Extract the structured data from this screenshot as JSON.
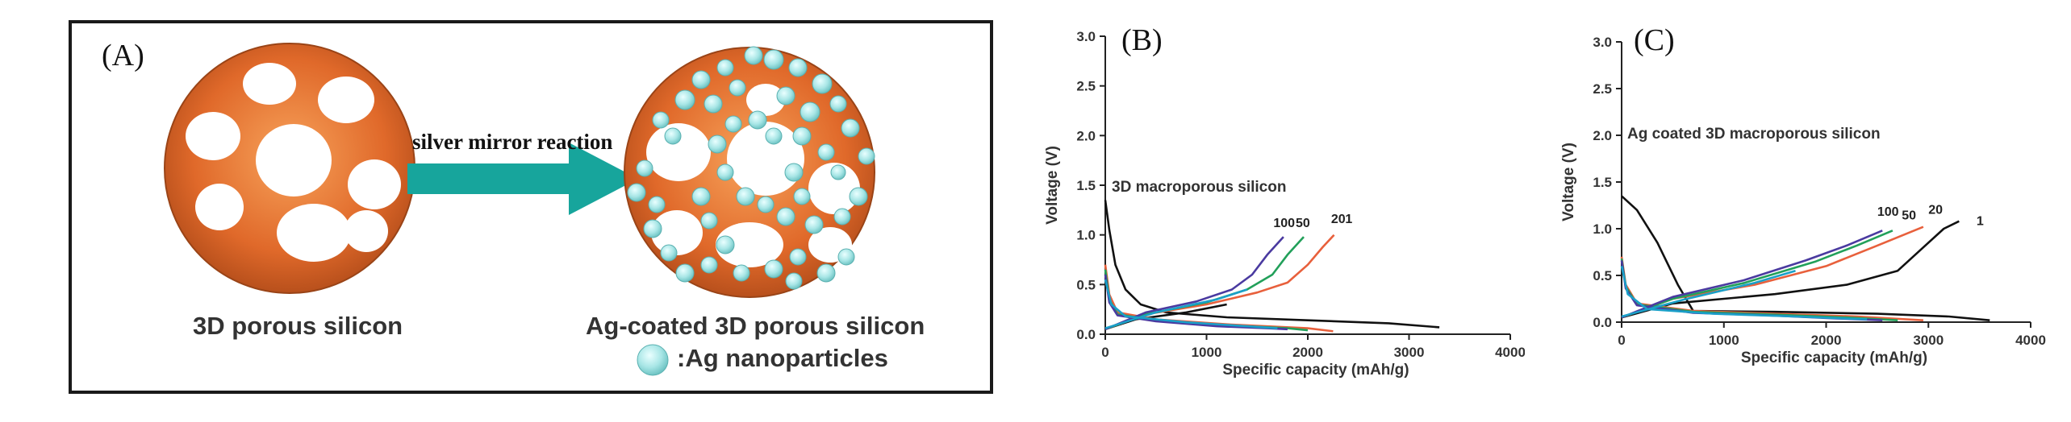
{
  "panel_a": {
    "label": "(A)",
    "arrow_text": "silver mirror reaction",
    "left_caption": "3D porous silicon",
    "right_caption": "Ag-coated 3D porous silicon",
    "legend_text": ":Ag nanoparticles",
    "colors": {
      "silicon": "#e06a2a",
      "pore": "#ffffff",
      "arrow": "#16a39a",
      "ag": "#a8e6e6"
    }
  },
  "chart_data": [
    {
      "type": "line",
      "panel_label": "(B)",
      "annotation": "3D macroporous silicon",
      "xlabel": "Specific  capacity (mAh/g)",
      "ylabel": "Voltage (V)",
      "xlim": [
        0,
        4000
      ],
      "ylim": [
        0,
        3.0
      ],
      "xticks": [
        "0",
        "1000",
        "2000",
        "3000",
        "4000"
      ],
      "yticks": [
        "0.0",
        "0.5",
        "1.0",
        "1.5",
        "2.0",
        "2.5",
        "3.0"
      ],
      "cycle_labels": [
        {
          "text": "100",
          "x": 1660,
          "y": 1.08
        },
        {
          "text": "50",
          "x": 1880,
          "y": 1.08
        },
        {
          "text": "20",
          "x": 2230,
          "y": 1.12
        },
        {
          "text": "1",
          "x": 2370,
          "y": 1.12
        }
      ],
      "series": [
        {
          "cycle": "1",
          "color": "#111111",
          "discharge": [
            [
              0,
              1.35
            ],
            [
              40,
              1.05
            ],
            [
              100,
              0.7
            ],
            [
              200,
              0.45
            ],
            [
              350,
              0.3
            ],
            [
              600,
              0.22
            ],
            [
              1200,
              0.17
            ],
            [
              2000,
              0.14
            ],
            [
              2800,
              0.11
            ],
            [
              3300,
              0.07
            ]
          ],
          "charge": [
            [
              0,
              0.05
            ],
            [
              300,
              0.15
            ],
            [
              800,
              0.22
            ],
            [
              1200,
              0.3
            ]
          ]
        },
        {
          "cycle": "20",
          "color": "#e8603c",
          "discharge": [
            [
              0,
              0.7
            ],
            [
              40,
              0.4
            ],
            [
              120,
              0.22
            ],
            [
              500,
              0.15
            ],
            [
              1200,
              0.1
            ],
            [
              2000,
              0.06
            ],
            [
              2250,
              0.03
            ]
          ],
          "charge": [
            [
              0,
              0.05
            ],
            [
              400,
              0.2
            ],
            [
              1000,
              0.3
            ],
            [
              1500,
              0.42
            ],
            [
              1800,
              0.52
            ],
            [
              2000,
              0.7
            ],
            [
              2150,
              0.88
            ],
            [
              2260,
              1.0
            ]
          ]
        },
        {
          "cycle": "50",
          "color": "#22a05a",
          "discharge": [
            [
              0,
              0.65
            ],
            [
              40,
              0.35
            ],
            [
              120,
              0.2
            ],
            [
              500,
              0.14
            ],
            [
              1200,
              0.09
            ],
            [
              1800,
              0.06
            ],
            [
              2000,
              0.04
            ]
          ],
          "charge": [
            [
              0,
              0.05
            ],
            [
              400,
              0.2
            ],
            [
              1000,
              0.32
            ],
            [
              1400,
              0.45
            ],
            [
              1650,
              0.6
            ],
            [
              1800,
              0.8
            ],
            [
              1960,
              0.98
            ]
          ]
        },
        {
          "cycle": "100",
          "color": "#4a3aa0",
          "discharge": [
            [
              0,
              0.6
            ],
            [
              40,
              0.32
            ],
            [
              120,
              0.19
            ],
            [
              500,
              0.13
            ],
            [
              1100,
              0.08
            ],
            [
              1600,
              0.06
            ],
            [
              1800,
              0.05
            ]
          ],
          "charge": [
            [
              0,
              0.05
            ],
            [
              400,
              0.22
            ],
            [
              900,
              0.33
            ],
            [
              1250,
              0.45
            ],
            [
              1450,
              0.6
            ],
            [
              1600,
              0.8
            ],
            [
              1760,
              0.98
            ]
          ]
        },
        {
          "cycle": "",
          "color": "#1aa0c8",
          "discharge": [
            [
              0,
              0.55
            ],
            [
              60,
              0.3
            ],
            [
              200,
              0.18
            ],
            [
              800,
              0.12
            ],
            [
              1400,
              0.08
            ],
            [
              1700,
              0.06
            ]
          ],
          "charge": [
            [
              0,
              0.06
            ],
            [
              500,
              0.22
            ],
            [
              1100,
              0.35
            ],
            [
              1400,
              0.45
            ]
          ]
        }
      ]
    },
    {
      "type": "line",
      "panel_label": "(C)",
      "annotation": "Ag coated 3D macroporous silicon",
      "xlabel": "Specific capacity (mAh/g)",
      "ylabel": "Voltage (V)",
      "xlim": [
        0,
        4000
      ],
      "ylim": [
        0,
        3.0
      ],
      "xticks": [
        "0",
        "1000",
        "2000",
        "3000",
        "4000"
      ],
      "yticks": [
        "0.0",
        "0.5",
        "1.0",
        "1.5",
        "2.0",
        "2.5",
        "3.0"
      ],
      "cycle_labels": [
        {
          "text": "100",
          "x": 2500,
          "y": 1.14
        },
        {
          "text": "50",
          "x": 2740,
          "y": 1.1
        },
        {
          "text": "20",
          "x": 3000,
          "y": 1.16
        },
        {
          "text": "1",
          "x": 3470,
          "y": 1.04
        }
      ],
      "series": [
        {
          "cycle": "1",
          "color": "#111111",
          "discharge": [
            [
              0,
              1.35
            ],
            [
              150,
              1.2
            ],
            [
              350,
              0.85
            ],
            [
              550,
              0.4
            ],
            [
              700,
              0.12
            ],
            [
              1500,
              0.11
            ],
            [
              2500,
              0.09
            ],
            [
              3200,
              0.06
            ],
            [
              3600,
              0.02
            ]
          ],
          "charge": [
            [
              0,
              0.05
            ],
            [
              500,
              0.2
            ],
            [
              1500,
              0.3
            ],
            [
              2200,
              0.4
            ],
            [
              2700,
              0.55
            ],
            [
              2950,
              0.8
            ],
            [
              3150,
              1.0
            ],
            [
              3300,
              1.08
            ]
          ]
        },
        {
          "cycle": "20",
          "color": "#e8603c",
          "discharge": [
            [
              0,
              0.7
            ],
            [
              40,
              0.4
            ],
            [
              150,
              0.2
            ],
            [
              700,
              0.12
            ],
            [
              1500,
              0.09
            ],
            [
              2300,
              0.06
            ],
            [
              2950,
              0.02
            ]
          ],
          "charge": [
            [
              0,
              0.05
            ],
            [
              500,
              0.25
            ],
            [
              1300,
              0.4
            ],
            [
              2000,
              0.6
            ],
            [
              2500,
              0.82
            ],
            [
              2950,
              1.02
            ]
          ]
        },
        {
          "cycle": "50",
          "color": "#22a05a",
          "discharge": [
            [
              0,
              0.68
            ],
            [
              40,
              0.38
            ],
            [
              150,
              0.19
            ],
            [
              700,
              0.11
            ],
            [
              1500,
              0.08
            ],
            [
              2200,
              0.05
            ],
            [
              2700,
              0.02
            ]
          ],
          "charge": [
            [
              0,
              0.05
            ],
            [
              500,
              0.25
            ],
            [
              1200,
              0.42
            ],
            [
              1900,
              0.65
            ],
            [
              2300,
              0.82
            ],
            [
              2650,
              0.98
            ]
          ]
        },
        {
          "cycle": "100",
          "color": "#4a3aa0",
          "discharge": [
            [
              0,
              0.66
            ],
            [
              40,
              0.36
            ],
            [
              150,
              0.18
            ],
            [
              700,
              0.1
            ],
            [
              1500,
              0.07
            ],
            [
              2100,
              0.04
            ],
            [
              2550,
              0.02
            ]
          ],
          "charge": [
            [
              0,
              0.05
            ],
            [
              500,
              0.27
            ],
            [
              1200,
              0.45
            ],
            [
              1800,
              0.66
            ],
            [
              2200,
              0.82
            ],
            [
              2550,
              0.98
            ]
          ]
        },
        {
          "cycle": "",
          "color": "#1aa0c8",
          "discharge": [
            [
              0,
              0.6
            ],
            [
              60,
              0.3
            ],
            [
              250,
              0.14
            ],
            [
              900,
              0.09
            ],
            [
              1700,
              0.06
            ],
            [
              2400,
              0.03
            ]
          ],
          "charge": [
            [
              0,
              0.06
            ],
            [
              600,
              0.24
            ],
            [
              1300,
              0.42
            ],
            [
              1700,
              0.55
            ]
          ]
        }
      ]
    }
  ]
}
